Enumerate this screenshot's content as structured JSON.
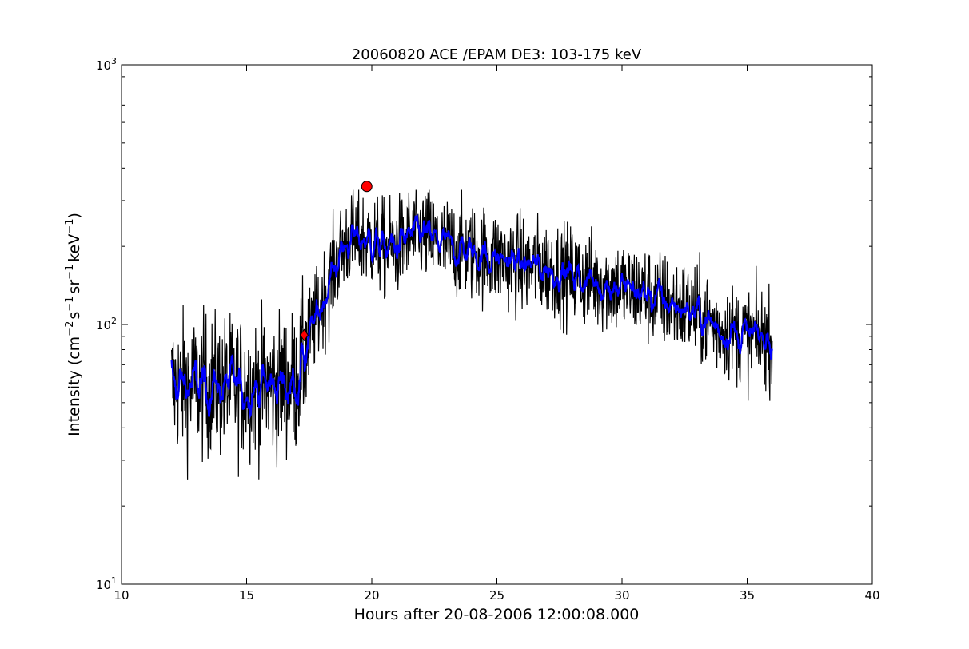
{
  "chart_data": {
    "type": "line",
    "title": "20060820 ACE /EPAM DE3: 103-175 keV",
    "xlabel": "Hours after 20-08-2006 12:00:08.000",
    "ylabel_parts": {
      "pre": "Intensity (cm",
      "sup1": "−2",
      "mid1": "s",
      "sup2": "−1",
      "mid2": "sr",
      "sup3": "−1",
      "mid3": "keV",
      "sup4": "−1",
      "post": ")"
    },
    "xlim": [
      10,
      40
    ],
    "ylim": [
      10,
      1000
    ],
    "yscale": "log",
    "grid": false,
    "x_ticks": [
      10,
      15,
      20,
      25,
      30,
      35,
      40
    ],
    "y_ticks": [
      {
        "base": "10",
        "exp": "1",
        "value": 10
      },
      {
        "base": "10",
        "exp": "2",
        "value": 100
      },
      {
        "base": "10",
        "exp": "3",
        "value": 1000
      }
    ],
    "series": [
      {
        "role": "raw",
        "color": "#000000",
        "x_range": [
          12.0,
          36.0
        ],
        "envelope": {
          "x": [
            12.0,
            13.0,
            14.0,
            15.0,
            16.0,
            17.0,
            17.3,
            17.6,
            18.0,
            18.5,
            19.0,
            19.5,
            20.0,
            20.5,
            21.0,
            21.5,
            22.0,
            22.5,
            23.0,
            24.0,
            25.0,
            26.0,
            27.0,
            28.0,
            29.0,
            30.0,
            31.0,
            32.0,
            33.0,
            34.0,
            35.0,
            36.0
          ],
          "y": [
            58,
            58,
            58,
            57,
            58,
            60,
            75,
            95,
            120,
            165,
            210,
            215,
            210,
            195,
            200,
            215,
            225,
            210,
            200,
            190,
            180,
            170,
            165,
            155,
            145,
            140,
            130,
            120,
            110,
            95,
            90,
            88
          ]
        }
      },
      {
        "role": "smoothed",
        "color": "#0000ff"
      }
    ],
    "markers": [
      {
        "shape": "circle",
        "x": 19.8,
        "y": 340,
        "color": "#ff0000"
      },
      {
        "shape": "diamond",
        "x": 17.3,
        "y": 91,
        "color": "#ff0000"
      }
    ]
  }
}
